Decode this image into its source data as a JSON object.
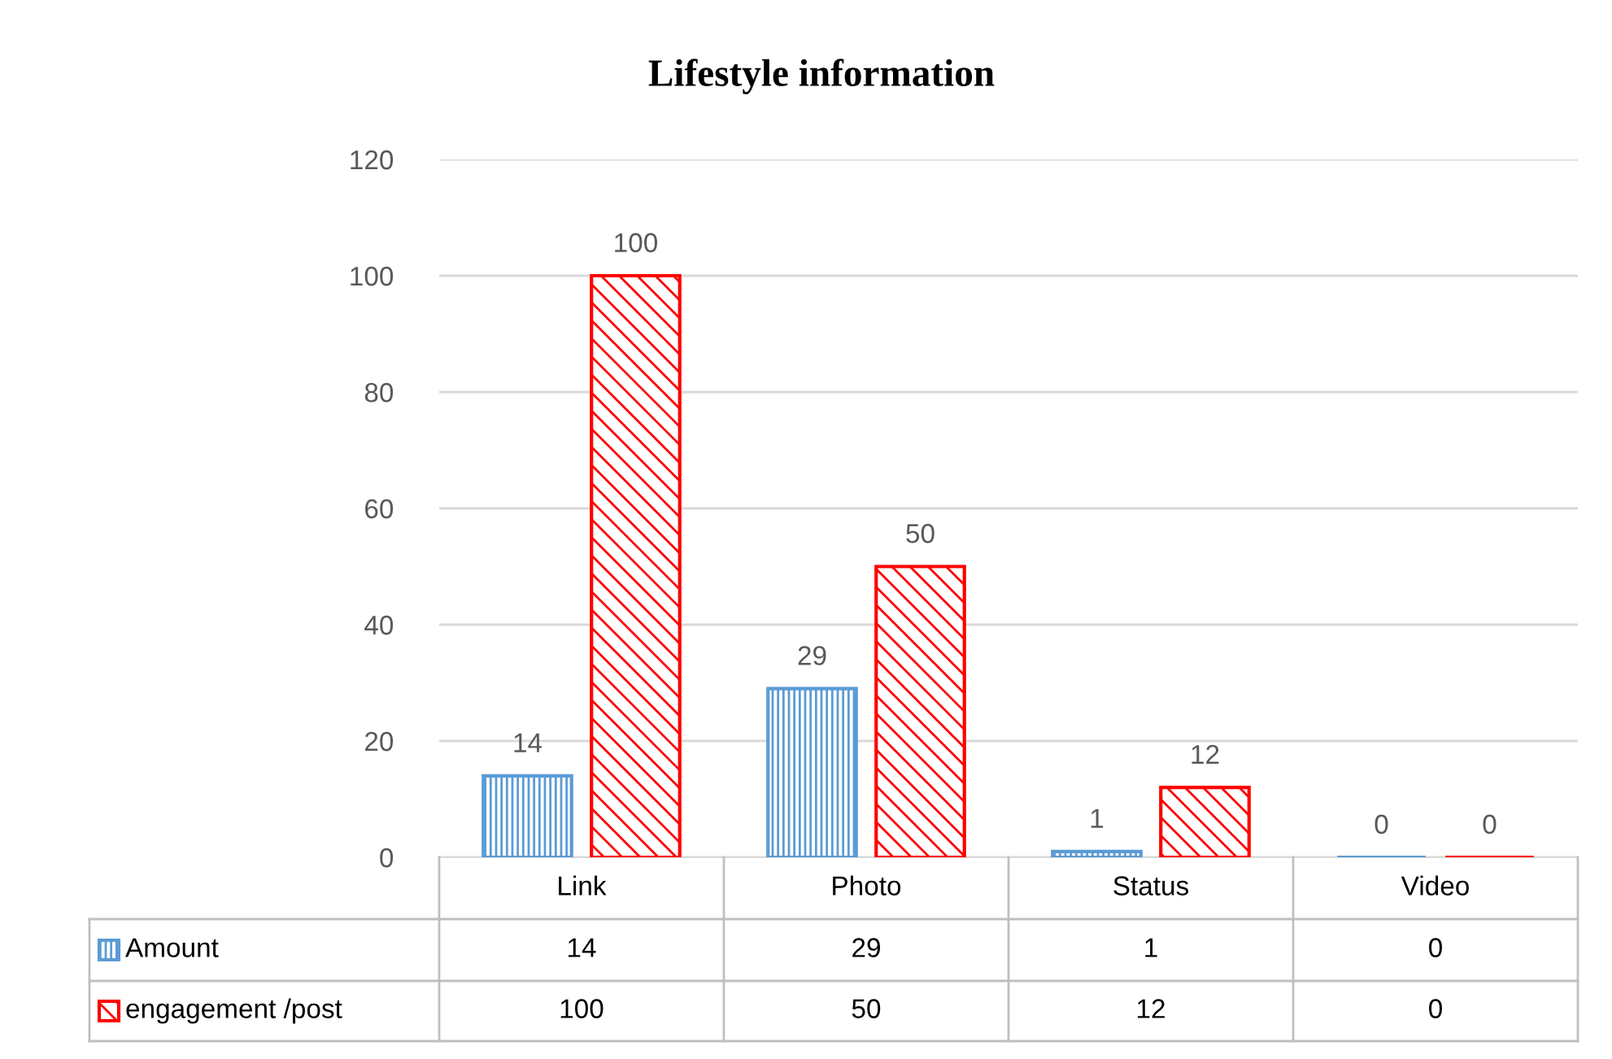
{
  "chart_data": {
    "type": "bar",
    "title": "Lifestyle information",
    "categories": [
      "Link",
      "Photo",
      "Status",
      "Video"
    ],
    "series": [
      {
        "name": "Amount",
        "color": "#5b9bd5",
        "values": [
          14,
          29,
          1,
          0
        ],
        "value_labels": [
          "14",
          "29",
          "1",
          "0"
        ]
      },
      {
        "name": "engagement /post",
        "color": "#ff0000",
        "values": [
          100,
          50,
          12,
          0
        ],
        "value_labels": [
          "100",
          "50",
          "12",
          "0"
        ]
      }
    ],
    "annotations": [
      "14",
      "29",
      "1",
      "0",
      "100",
      "50",
      "12",
      "0"
    ],
    "ylim": [
      0,
      120
    ],
    "yticks": [
      0,
      20,
      40,
      60,
      80,
      100,
      120
    ],
    "grid": "y",
    "legend": "bottom",
    "data_labels": true
  }
}
